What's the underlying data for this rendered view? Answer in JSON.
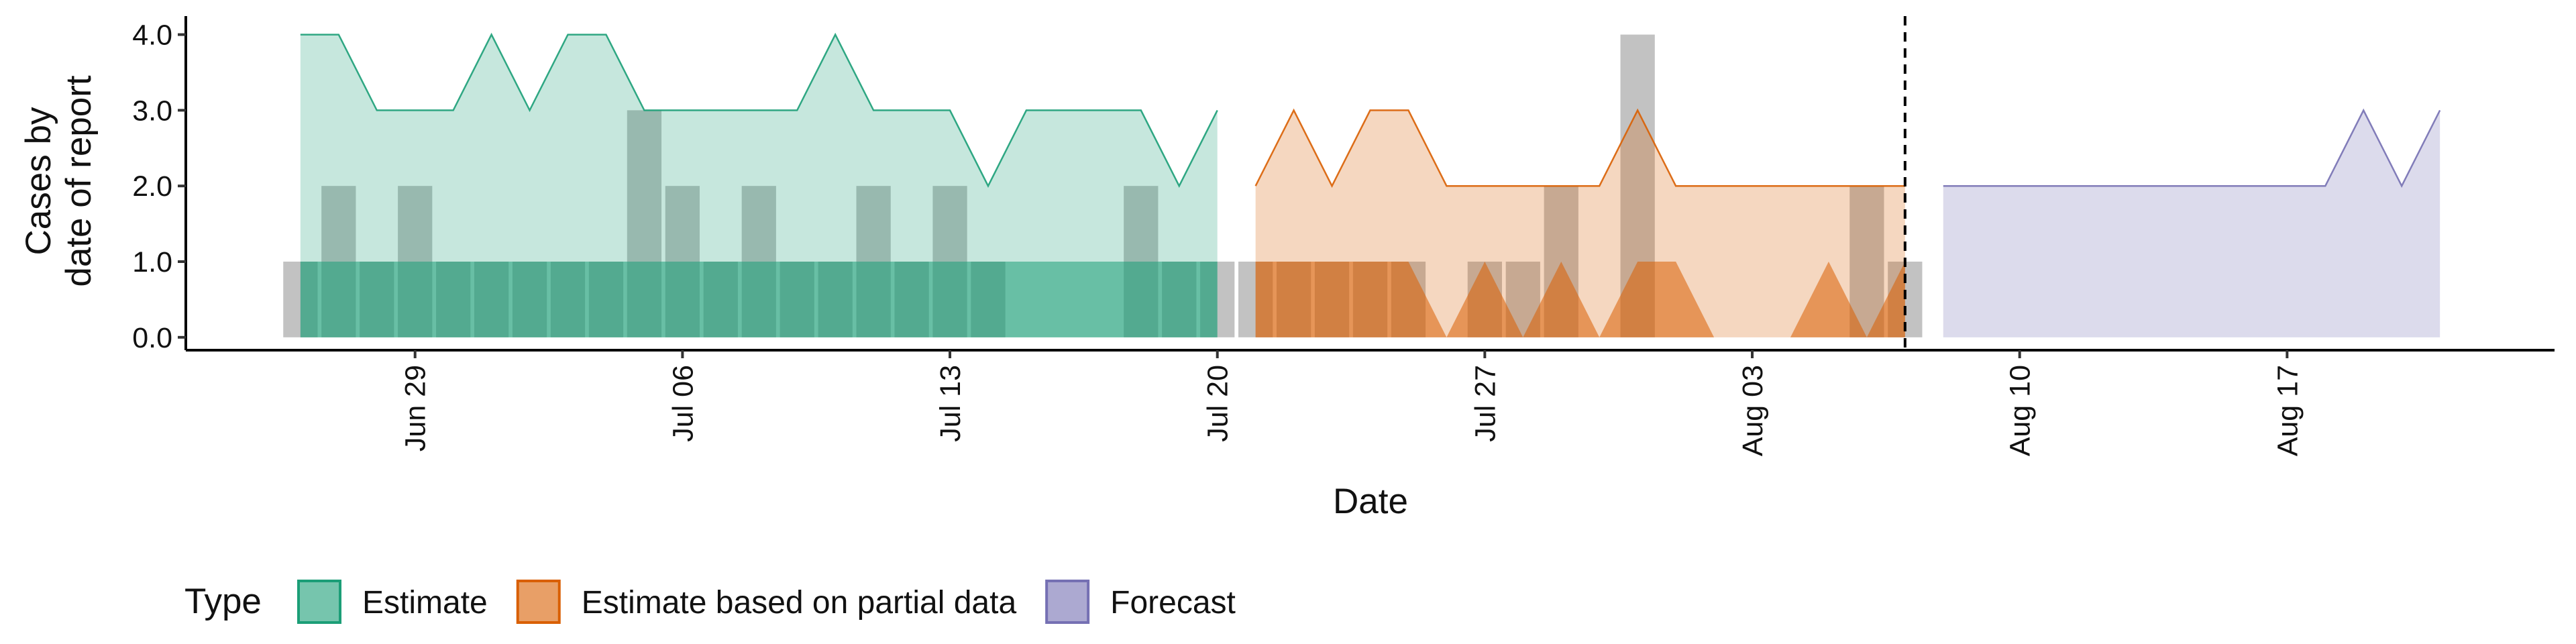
{
  "chart_data": {
    "type": "ribbon",
    "xlabel": "Date",
    "ylabel": [
      "Cases by",
      "date of report"
    ],
    "legend_title": "Type",
    "xlim": [
      "06-23",
      "08-24"
    ],
    "xticks": [
      {
        "value": "06-29",
        "label": "Jun 29"
      },
      {
        "value": "07-06",
        "label": "Jul 06"
      },
      {
        "value": "07-13",
        "label": "Jul 13"
      },
      {
        "value": "07-20",
        "label": "Jul 20"
      },
      {
        "value": "07-27",
        "label": "Jul 27"
      },
      {
        "value": "08-03",
        "label": "Aug 03"
      },
      {
        "value": "08-10",
        "label": "Aug 10"
      },
      {
        "value": "08-17",
        "label": "Aug 17"
      }
    ],
    "ylim": [
      -0.17,
      4.2
    ],
    "yticks": [
      {
        "value": 0,
        "label": "0.0"
      },
      {
        "value": 1,
        "label": "1.0"
      },
      {
        "value": 2,
        "label": "2.0"
      },
      {
        "value": 3,
        "label": "3.0"
      },
      {
        "value": 4,
        "label": "4.0"
      }
    ],
    "vline": "08-07",
    "observed": {
      "color": "#999999",
      "x": [
        "06-26",
        "06-27",
        "06-28",
        "06-29",
        "06-30",
        "07-01",
        "07-02",
        "07-03",
        "07-04",
        "07-05",
        "07-06",
        "07-07",
        "07-08",
        "07-09",
        "07-10",
        "07-11",
        "07-12",
        "07-13",
        "07-14",
        "07-15",
        "07-16",
        "07-17",
        "07-18",
        "07-19",
        "07-20",
        "07-21",
        "07-22",
        "07-23",
        "07-24",
        "07-25",
        "07-26",
        "07-27",
        "07-28",
        "07-29",
        "07-30",
        "07-31",
        "08-01",
        "08-02",
        "08-03",
        "08-04",
        "08-05",
        "08-06",
        "08-07"
      ],
      "values": [
        1,
        2,
        1,
        2,
        1,
        1,
        1,
        1,
        1,
        3,
        2,
        1,
        2,
        1,
        1,
        2,
        1,
        2,
        1,
        0,
        0,
        0,
        2,
        1,
        1,
        1,
        1,
        1,
        1,
        1,
        0,
        1,
        1,
        2,
        0,
        4,
        0,
        0,
        0,
        0,
        0,
        2,
        1
      ]
    },
    "series": [
      {
        "name": "Estimate",
        "color": "#1b9e77",
        "x": [
          "06-26",
          "06-27",
          "06-28",
          "06-29",
          "06-30",
          "07-01",
          "07-02",
          "07-03",
          "07-04",
          "07-05",
          "07-06",
          "07-07",
          "07-08",
          "07-09",
          "07-10",
          "07-11",
          "07-12",
          "07-13",
          "07-14",
          "07-15",
          "07-16",
          "07-17",
          "07-18",
          "07-19",
          "07-20"
        ],
        "upper": [
          4,
          4,
          3,
          3,
          3,
          4,
          3,
          4,
          4,
          3,
          3,
          3,
          3,
          3,
          4,
          3,
          3,
          3,
          2,
          3,
          3,
          3,
          3,
          2,
          3
        ],
        "inner": [
          1,
          1,
          1,
          1,
          1,
          1,
          1,
          1,
          1,
          1,
          1,
          1,
          1,
          1,
          1,
          1,
          1,
          1,
          1,
          1,
          1,
          1,
          1,
          1,
          1
        ]
      },
      {
        "name": "Estimate based on partial data",
        "color": "#d95f02",
        "x": [
          "07-21",
          "07-22",
          "07-23",
          "07-24",
          "07-25",
          "07-26",
          "07-27",
          "07-28",
          "07-29",
          "07-30",
          "07-31",
          "08-01",
          "08-02",
          "08-03",
          "08-04",
          "08-05",
          "08-06",
          "08-07"
        ],
        "upper": [
          2,
          3,
          2,
          3,
          3,
          2,
          2,
          2,
          2,
          2,
          3,
          2,
          2,
          2,
          2,
          2,
          2,
          2
        ],
        "inner": [
          1,
          1,
          1,
          1,
          1,
          0,
          1,
          0,
          1,
          0,
          1,
          1,
          0,
          0,
          0,
          1,
          0,
          1
        ]
      },
      {
        "name": "Forecast",
        "color": "#7570b3",
        "x": [
          "08-08",
          "08-09",
          "08-10",
          "08-11",
          "08-12",
          "08-13",
          "08-14",
          "08-15",
          "08-16",
          "08-17",
          "08-18",
          "08-19",
          "08-20",
          "08-21"
        ],
        "upper": [
          2,
          2,
          2,
          2,
          2,
          2,
          2,
          2,
          2,
          2,
          2,
          3,
          2,
          3
        ],
        "inner": [
          0,
          0,
          0,
          0,
          0,
          0,
          0,
          0,
          0,
          0,
          0,
          0,
          0,
          0
        ]
      }
    ]
  }
}
